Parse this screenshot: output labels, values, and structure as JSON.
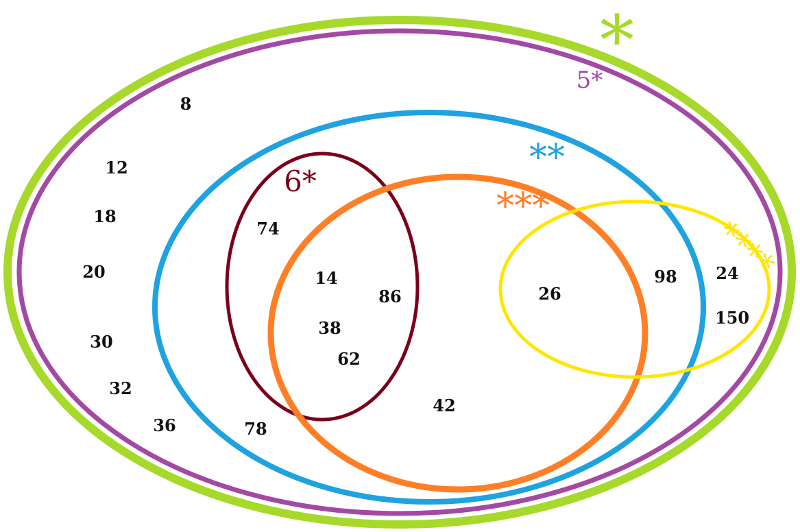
{
  "sets": {
    "outer_green": {
      "label": "*",
      "color": "#a6d92a"
    },
    "purple": {
      "label": "5*",
      "color": "#a349a4"
    },
    "blue": {
      "label": "**",
      "color": "#1ea3e0"
    },
    "dark_red": {
      "label": "6*",
      "color": "#7a0019"
    },
    "orange": {
      "label": "***",
      "color": "#ff7f27"
    },
    "yellow": {
      "label": "****",
      "color": "#ffe600"
    }
  },
  "numbers": {
    "n8": "8",
    "n12": "12",
    "n18": "18",
    "n20": "20",
    "n30": "30",
    "n32": "32",
    "n36": "36",
    "n78": "78",
    "n74": "74",
    "n14": "14",
    "n86": "86",
    "n38": "38",
    "n62": "62",
    "n42": "42",
    "n26": "26",
    "n98": "98",
    "n24": "24",
    "n150": "150"
  }
}
